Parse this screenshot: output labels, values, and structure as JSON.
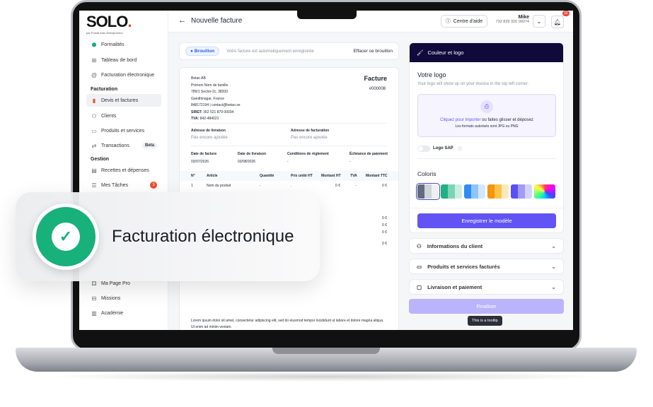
{
  "sidebar": {
    "logo": "SOLO",
    "logo_sub": "par Portail Auto Entrepreneur",
    "items": [
      {
        "label": "Formalités",
        "icon": "green-badge-icon"
      },
      {
        "label": "Tableau de bord",
        "icon": "grid-icon"
      },
      {
        "label": "Facturation électronique",
        "icon": "at-icon"
      }
    ],
    "section_facturation": "Facturation",
    "facturation_items": [
      {
        "label": "Devis et factures",
        "icon": "document-icon"
      },
      {
        "label": "Clients",
        "icon": "users-icon"
      },
      {
        "label": "Produits et services",
        "icon": "folder-icon"
      },
      {
        "label": "Transactions",
        "icon": "transfer-icon",
        "badge": "Beta"
      }
    ],
    "section_gestion": "Gestion",
    "gestion_items": [
      {
        "label": "Recettes et dépenses",
        "icon": "receipt-icon"
      },
      {
        "label": "Mes Tâches",
        "icon": "list-icon",
        "badge": "3"
      }
    ],
    "bottom_items": [
      {
        "label": "Ma Page Pro",
        "icon": "page-icon"
      },
      {
        "label": "Missions",
        "icon": "briefcase-icon"
      },
      {
        "label": "Académie",
        "icon": "book-icon"
      }
    ]
  },
  "header": {
    "title": "Nouvelle facture",
    "help": "Centre d'aide",
    "user_name": "Mike",
    "user_id": "732 829 320 00074",
    "notifications": "32"
  },
  "status": {
    "badge": "Brouillon",
    "message": "Votre facture est automatiquement enregistrée",
    "clear": "Effacer ce brouillon"
  },
  "invoice": {
    "company": "Betao AB",
    "name": "Prénom Nom de famille",
    "address1": "789/1 Sector-2c, 38200",
    "address2": "Gandhinagar, France",
    "contact": "848172194  |  contact@betao.se",
    "siret_label": "SIRET:",
    "siret": "362 521 879 00034",
    "tva_label": "TVA:",
    "tva": "842-484021",
    "title": "Facture",
    "number": "#000008",
    "delivery_label": "Adresse de livraison",
    "delivery_value": "Pas encore ajoutée",
    "billing_label": "Adresse de facturation",
    "billing_value": "Pas encore ajoutée",
    "dates": [
      {
        "label": "Date de facture",
        "value": "03/07/2026"
      },
      {
        "label": "Date de livraison",
        "value": "03/08/2026"
      },
      {
        "label": "Conditions de règlement",
        "value": "-"
      },
      {
        "label": "Échéance de paiement",
        "value": "-"
      }
    ],
    "columns": [
      "N°",
      "Article",
      "Quantité",
      "Prix unité HT",
      "Montant HT",
      "TVA",
      "Montant TTC"
    ],
    "rows": [
      [
        "1",
        "Nom du produit",
        "-",
        ".",
        "0 €",
        "-",
        "0 €"
      ]
    ],
    "totals": [
      "0 €",
      "0 €",
      "0 €",
      "0 €"
    ],
    "footer": "Lorem ipsum dolor sit amet, consectetur adipiscing elit, sed do eiusmod tempor incididunt ut labore et dolore magna aliqua. Ut enim ad minim veniam."
  },
  "panel": {
    "header": "Couleur et logo",
    "logo_title": "Votre logo",
    "logo_desc": "Your logo will show up on your invoice in the top left corner.",
    "upload_link": "Cliquez pour importer",
    "upload_text": " ou faites glisser et déposez",
    "upload_formats": "Les formats autorisés sont JPG ou PNG",
    "sap_label": "Logo SAP",
    "colors_title": "Coloris",
    "save": "Enregistrer le modèle",
    "palettes": [
      [
        "#636b7d",
        "#cfd3da",
        "#eef0f4"
      ],
      [
        "#1db184",
        "#7dd3b7",
        "#c9eee1"
      ],
      [
        "#2f8cf7",
        "#8ec5fb",
        "#d3e8fd"
      ],
      [
        "#f7930d",
        "#fcc44a",
        "#fde8bb"
      ],
      [
        "#5b4ff5",
        "#a19cf8",
        "#d4d1fc"
      ]
    ],
    "accordions": [
      {
        "label": "Informations du client",
        "icon": "user-icon"
      },
      {
        "label": "Produits et services facturés",
        "icon": "folder-icon"
      },
      {
        "label": "Livraison et paiement",
        "icon": "wallet-icon"
      }
    ],
    "finalize": "Finaliser",
    "tooltip": "This is a tooltip",
    "accent": "#6253f5",
    "header_bg": "#0f0a3c"
  },
  "overlay": {
    "title": "Facturation électronique",
    "accent": "#18b07b"
  }
}
